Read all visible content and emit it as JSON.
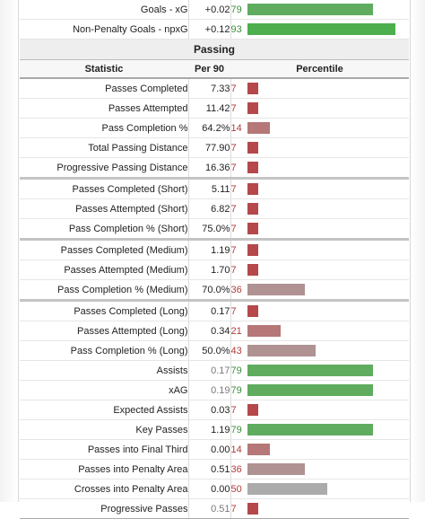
{
  "top_rows": [
    {
      "stat": "Goals - xG",
      "per90": "+0.02",
      "pct": 79
    },
    {
      "stat": "Non-Penalty Goals - npxG",
      "per90": "+0.12",
      "pct": 93
    }
  ],
  "section_title": "Passing",
  "headers": {
    "statistic": "Statistic",
    "per90": "Per 90",
    "percentile": "Percentile"
  },
  "rows": [
    {
      "stat": "Passes Completed",
      "per90": "7.33",
      "pct": 7
    },
    {
      "stat": "Passes Attempted",
      "per90": "11.42",
      "pct": 7
    },
    {
      "stat": "Pass Completion %",
      "per90": "64.2%",
      "pct": 14
    },
    {
      "stat": "Total Passing Distance",
      "per90": "77.90",
      "pct": 7
    },
    {
      "stat": "Progressive Passing Distance",
      "per90": "16.36",
      "pct": 7
    },
    {
      "stat": "Passes Completed (Short)",
      "per90": "5.11",
      "pct": 7,
      "group_start": true
    },
    {
      "stat": "Passes Attempted (Short)",
      "per90": "6.82",
      "pct": 7
    },
    {
      "stat": "Pass Completion % (Short)",
      "per90": "75.0%",
      "pct": 7
    },
    {
      "stat": "Passes Completed (Medium)",
      "per90": "1.19",
      "pct": 7,
      "group_start": true
    },
    {
      "stat": "Passes Attempted (Medium)",
      "per90": "1.70",
      "pct": 7
    },
    {
      "stat": "Pass Completion % (Medium)",
      "per90": "70.0%",
      "pct": 36
    },
    {
      "stat": "Passes Completed (Long)",
      "per90": "0.17",
      "pct": 7,
      "group_start": true
    },
    {
      "stat": "Passes Attempted (Long)",
      "per90": "0.34",
      "pct": 21
    },
    {
      "stat": "Pass Completion % (Long)",
      "per90": "50.0%",
      "pct": 43
    },
    {
      "stat": "Assists",
      "per90": "0.17",
      "pct": 79,
      "gray": true
    },
    {
      "stat": "xAG",
      "per90": "0.19",
      "pct": 79,
      "gray": true
    },
    {
      "stat": "Expected Assists",
      "per90": "0.03",
      "pct": 7
    },
    {
      "stat": "Key Passes",
      "per90": "1.19",
      "pct": 79
    },
    {
      "stat": "Passes into Final Third",
      "per90": "0.00",
      "pct": 14
    },
    {
      "stat": "Passes into Penalty Area",
      "per90": "0.51",
      "pct": 36
    },
    {
      "stat": "Crosses into Penalty Area",
      "per90": "0.00",
      "pct": 50
    },
    {
      "stat": "Progressive Passes",
      "per90": "0.51",
      "pct": 7,
      "gray": true
    }
  ],
  "colors": {
    "very_low": "#b5484a",
    "low": "#b57777",
    "mid_low": "#b09292",
    "mid": "#ababab",
    "high": "#5fac5f",
    "very_high": "#4cae4c"
  }
}
